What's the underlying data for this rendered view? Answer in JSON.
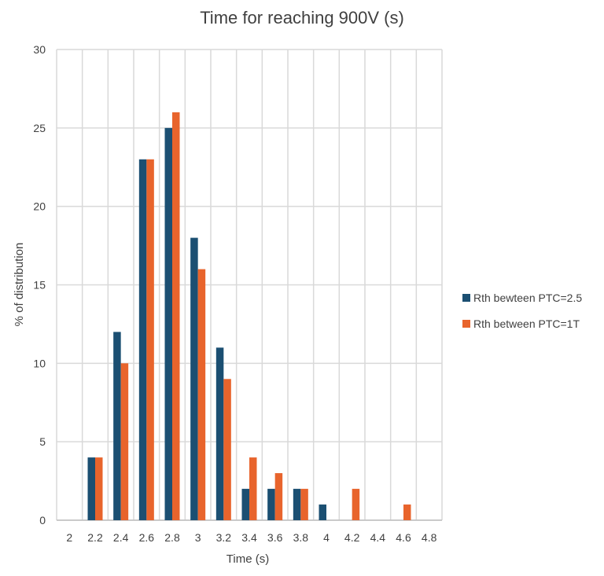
{
  "chart_data": {
    "type": "bar",
    "title": "Time for reaching 900V (s)",
    "xlabel": "Time (s)",
    "ylabel": "% of distribution",
    "ylim": [
      0,
      30
    ],
    "yticks": [
      0,
      5,
      10,
      15,
      20,
      25,
      30
    ],
    "grid": true,
    "legend_position": "right",
    "categories": [
      "2",
      "2.2",
      "2.4",
      "2.6",
      "2.8",
      "3",
      "3.2",
      "3.4",
      "3.6",
      "3.8",
      "4",
      "4.2",
      "4.4",
      "4.6",
      "4.8"
    ],
    "series": [
      {
        "name": "Rth bewteen PTC=2.5",
        "color": "#1b4f72",
        "values": [
          0,
          4,
          12,
          23,
          25,
          18,
          11,
          2,
          2,
          2,
          1,
          0,
          0,
          0,
          0
        ]
      },
      {
        "name": "Rth between PTC=1T",
        "color": "#e8642c",
        "values": [
          0,
          4,
          10,
          23,
          26,
          16,
          9,
          4,
          3,
          2,
          0,
          2,
          0,
          1,
          0
        ]
      }
    ]
  }
}
